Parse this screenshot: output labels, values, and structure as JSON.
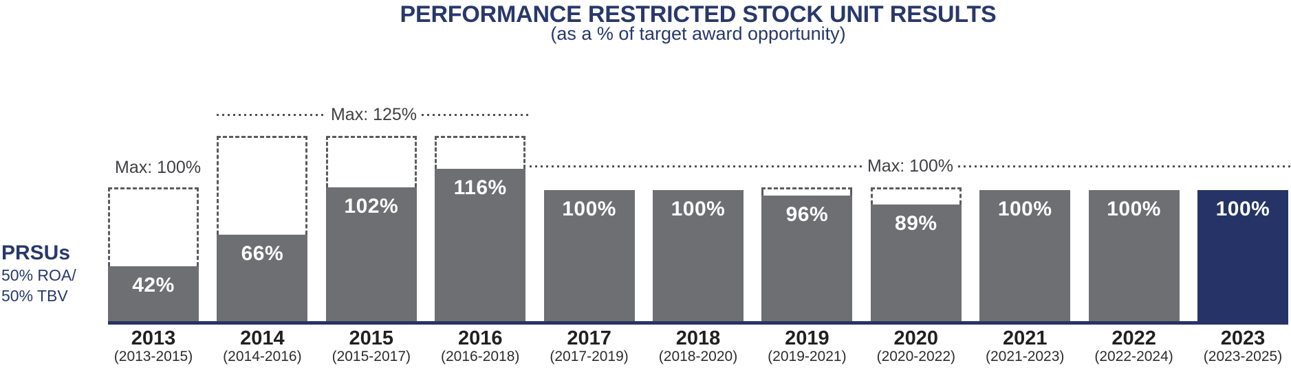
{
  "header": {
    "title": "PERFORMANCE RESTRICTED STOCK UNIT RESULTS",
    "subtitle": "(as a % of target award opportunity)"
  },
  "prsu": {
    "title": "PRSUs",
    "line1": "50% ROA/",
    "line2": "50%  TBV"
  },
  "annotations": {
    "max125": {
      "label": "Max: 125%"
    },
    "max100_left": {
      "label": "Max: 100%"
    },
    "max100_right": {
      "label": "Max: 100%"
    }
  },
  "colors": {
    "bar_gray": "#6e6f72",
    "bar_navy": "#263366",
    "axis_navy": "#263366",
    "text_navy": "#28386b",
    "dash_gray": "#5a5b5e",
    "dot_gray": "#4c4f56",
    "label_dark": "#3f4043",
    "year_dark": "#221f20",
    "period_dark": "#2c2c2c",
    "value_text": "#ffffff"
  },
  "chart_data": {
    "type": "bar",
    "title": "PERFORMANCE RESTRICTED STOCK UNIT RESULTS",
    "subtitle": "(as a % of target award opportunity)",
    "ylabel": "% of target award opportunity",
    "ylim": [
      0,
      145
    ],
    "grid": false,
    "legend": "none",
    "categories": [
      "2013",
      "2014",
      "2015",
      "2016",
      "2017",
      "2018",
      "2019",
      "2020",
      "2021",
      "2022",
      "2023"
    ],
    "periods": [
      "(2013-2015)",
      "(2014-2016)",
      "(2015-2017)",
      "(2016-2018)",
      "(2017-2019)",
      "(2018-2020)",
      "(2019-2021)",
      "(2020-2022)",
      "(2021-2023)",
      "(2022-2024)",
      "(2023-2025)"
    ],
    "values": [
      42,
      66,
      102,
      116,
      100,
      100,
      96,
      89,
      100,
      100,
      100
    ],
    "value_labels": [
      "42%",
      "66%",
      "102%",
      "116%",
      "100%",
      "100%",
      "96%",
      "89%",
      "100%",
      "100%",
      "100%"
    ],
    "max_opportunity": [
      100,
      125,
      125,
      125,
      100,
      100,
      100,
      100,
      100,
      100,
      100
    ],
    "show_max_box": [
      true,
      true,
      true,
      true,
      false,
      false,
      true,
      true,
      false,
      false,
      false
    ],
    "highlight_index": 10,
    "series_label": "PRSUs (50% ROA / 50% TBV)"
  }
}
